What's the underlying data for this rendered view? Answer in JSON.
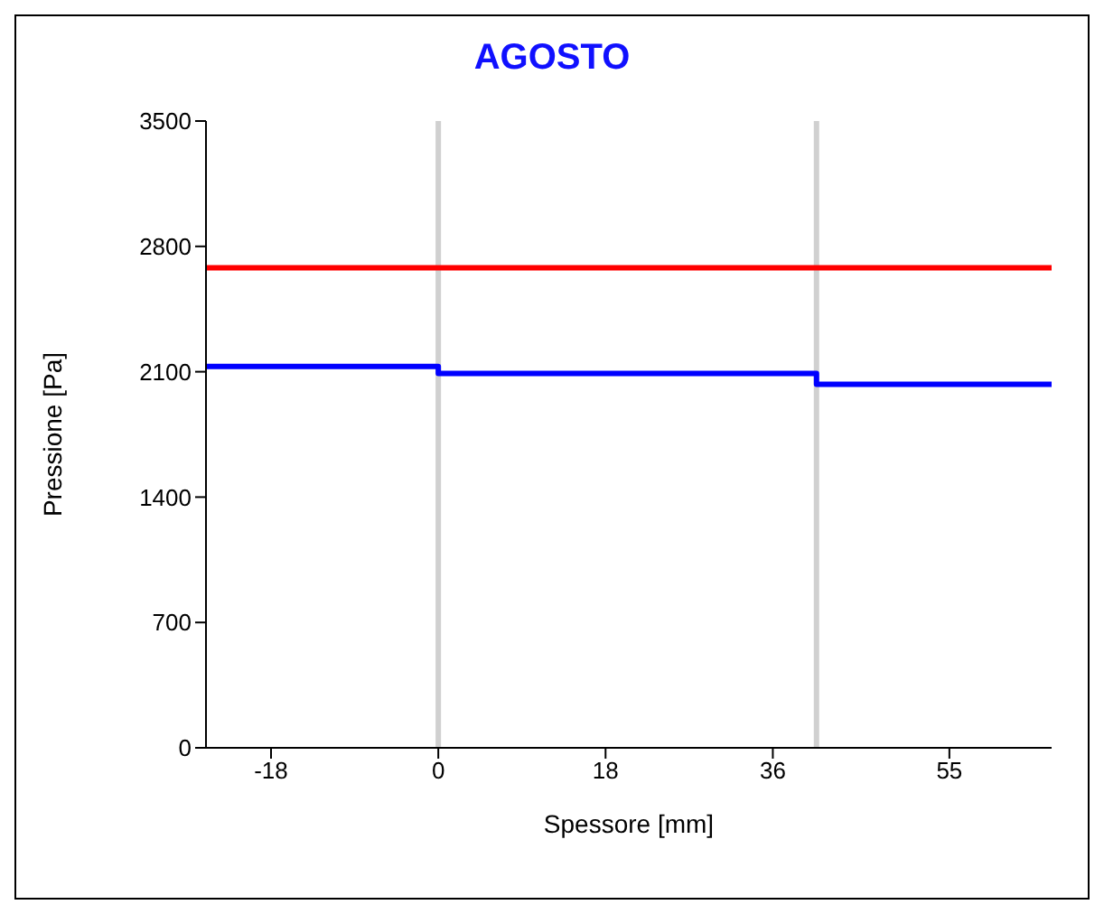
{
  "chart_data": {
    "type": "line",
    "title": "AGOSTO",
    "xlabel": "Spessore [mm]",
    "ylabel": "Pressione [Pa]",
    "xlim": [
      -25,
      66
    ],
    "xticks": [
      -18,
      0,
      18,
      36,
      55
    ],
    "ylim": [
      0,
      3500
    ],
    "yticks": [
      0,
      700,
      1400,
      2100,
      2800,
      3500
    ],
    "grid": false,
    "legend": false,
    "marker": "none",
    "line_style": "solid",
    "series": [
      {
        "color": "#ff0000",
        "x": [
          -25,
          66
        ],
        "values": [
          2680,
          2680
        ]
      },
      {
        "color": "#0000ff",
        "x": [
          -25,
          0,
          0,
          40.7,
          40.7,
          66
        ],
        "values": [
          2130,
          2130,
          2090,
          2090,
          2030,
          2030
        ]
      }
    ],
    "ref_lines": [
      {
        "axis": "x",
        "value": 0,
        "color": "#d0d0d0"
      },
      {
        "axis": "x",
        "value": 40.7,
        "color": "#d0d0d0"
      }
    ]
  }
}
